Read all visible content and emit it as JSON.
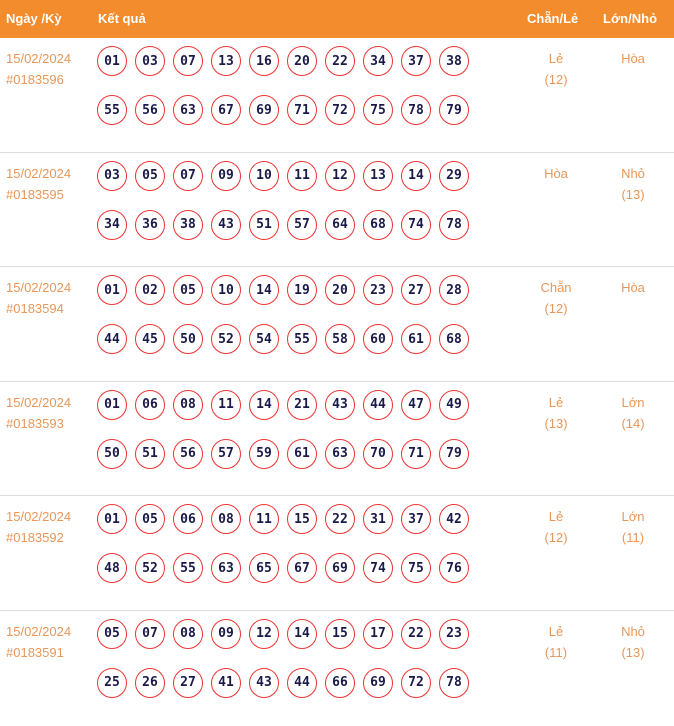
{
  "header": {
    "date": "Ngày /Kỳ",
    "result": "Kết quả",
    "even_odd": "Chẵn/Lẻ",
    "big_small": "Lớn/Nhỏ"
  },
  "rows": [
    {
      "date": "15/02/2024",
      "draw": "#0183596",
      "numbers": [
        "01",
        "03",
        "07",
        "13",
        "16",
        "20",
        "22",
        "34",
        "37",
        "38",
        "55",
        "56",
        "63",
        "67",
        "69",
        "71",
        "72",
        "75",
        "78",
        "79"
      ],
      "even_odd": "Lẻ",
      "even_odd_count": "(12)",
      "big_small": "Hòa",
      "big_small_count": ""
    },
    {
      "date": "15/02/2024",
      "draw": "#0183595",
      "numbers": [
        "03",
        "05",
        "07",
        "09",
        "10",
        "11",
        "12",
        "13",
        "14",
        "29",
        "34",
        "36",
        "38",
        "43",
        "51",
        "57",
        "64",
        "68",
        "74",
        "78"
      ],
      "even_odd": "Hòa",
      "even_odd_count": "",
      "big_small": "Nhỏ",
      "big_small_count": "(13)"
    },
    {
      "date": "15/02/2024",
      "draw": "#0183594",
      "numbers": [
        "01",
        "02",
        "05",
        "10",
        "14",
        "19",
        "20",
        "23",
        "27",
        "28",
        "44",
        "45",
        "50",
        "52",
        "54",
        "55",
        "58",
        "60",
        "61",
        "68"
      ],
      "even_odd": "Chẵn",
      "even_odd_count": "(12)",
      "big_small": "Hòa",
      "big_small_count": ""
    },
    {
      "date": "15/02/2024",
      "draw": "#0183593",
      "numbers": [
        "01",
        "06",
        "08",
        "11",
        "14",
        "21",
        "43",
        "44",
        "47",
        "49",
        "50",
        "51",
        "56",
        "57",
        "59",
        "61",
        "63",
        "70",
        "71",
        "79"
      ],
      "even_odd": "Lẻ",
      "even_odd_count": "(13)",
      "big_small": "Lớn",
      "big_small_count": "(14)"
    },
    {
      "date": "15/02/2024",
      "draw": "#0183592",
      "numbers": [
        "01",
        "05",
        "06",
        "08",
        "11",
        "15",
        "22",
        "31",
        "37",
        "42",
        "48",
        "52",
        "55",
        "63",
        "65",
        "67",
        "69",
        "74",
        "75",
        "76"
      ],
      "even_odd": "Lẻ",
      "even_odd_count": "(12)",
      "big_small": "Lớn",
      "big_small_count": "(11)"
    },
    {
      "date": "15/02/2024",
      "draw": "#0183591",
      "numbers": [
        "05",
        "07",
        "08",
        "09",
        "12",
        "14",
        "15",
        "17",
        "22",
        "23",
        "25",
        "26",
        "27",
        "41",
        "43",
        "44",
        "66",
        "69",
        "72",
        "78"
      ],
      "even_odd": "Lẻ",
      "even_odd_count": "(11)",
      "big_small": "Nhỏ",
      "big_small_count": "(13)"
    }
  ]
}
